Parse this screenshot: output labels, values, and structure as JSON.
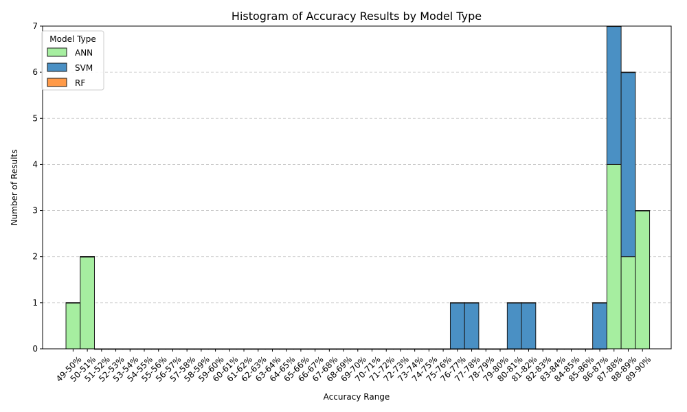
{
  "chart_data": {
    "type": "bar",
    "stacked": true,
    "title": "Histogram of Accuracy Results by Model Type",
    "xlabel": "Accuracy Range",
    "ylabel": "Number of Results",
    "ylim": [
      0,
      7
    ],
    "yticks": [
      "0",
      "1",
      "2",
      "3",
      "4",
      "5",
      "6",
      "7"
    ],
    "grid": "y-dashed",
    "legend_title": "Model Type",
    "legend_position": "top-left",
    "categories": [
      "49-50%",
      "50-51%",
      "51-52%",
      "52-53%",
      "53-54%",
      "54-55%",
      "55-56%",
      "56-57%",
      "57-58%",
      "58-59%",
      "59-60%",
      "60-61%",
      "61-62%",
      "62-63%",
      "63-64%",
      "64-65%",
      "65-66%",
      "66-67%",
      "67-68%",
      "68-69%",
      "69-70%",
      "70-71%",
      "71-72%",
      "72-73%",
      "73-74%",
      "74-75%",
      "75-76%",
      "76-77%",
      "77-78%",
      "78-79%",
      "79-80%",
      "80-81%",
      "81-82%",
      "82-83%",
      "83-84%",
      "84-85%",
      "85-86%",
      "86-87%",
      "87-88%",
      "88-89%",
      "89-90%"
    ],
    "series": [
      {
        "name": "ANN",
        "color": "#a6eea0",
        "values": [
          1,
          2,
          0,
          0,
          0,
          0,
          0,
          0,
          0,
          0,
          0,
          0,
          0,
          0,
          0,
          0,
          0,
          0,
          0,
          0,
          0,
          0,
          0,
          0,
          0,
          0,
          0,
          0,
          0,
          0,
          0,
          0,
          0,
          0,
          0,
          0,
          0,
          0,
          4,
          2,
          3
        ]
      },
      {
        "name": "SVM",
        "color": "#4a90c4",
        "values": [
          0,
          0,
          0,
          0,
          0,
          0,
          0,
          0,
          0,
          0,
          0,
          0,
          0,
          0,
          0,
          0,
          0,
          0,
          0,
          0,
          0,
          0,
          0,
          0,
          0,
          0,
          0,
          1,
          1,
          0,
          0,
          1,
          1,
          0,
          0,
          0,
          0,
          1,
          3,
          4,
          0
        ]
      },
      {
        "name": "RF",
        "color": "#ff9a48",
        "values": [
          0,
          0,
          0,
          0,
          0,
          0,
          0,
          0,
          0,
          0,
          0,
          0,
          0,
          0,
          0,
          0,
          0,
          0,
          0,
          0,
          0,
          0,
          0,
          0,
          0,
          0,
          0,
          0,
          0,
          0,
          0,
          0,
          0,
          0,
          0,
          0,
          0,
          0,
          0,
          0,
          0
        ]
      }
    ]
  }
}
